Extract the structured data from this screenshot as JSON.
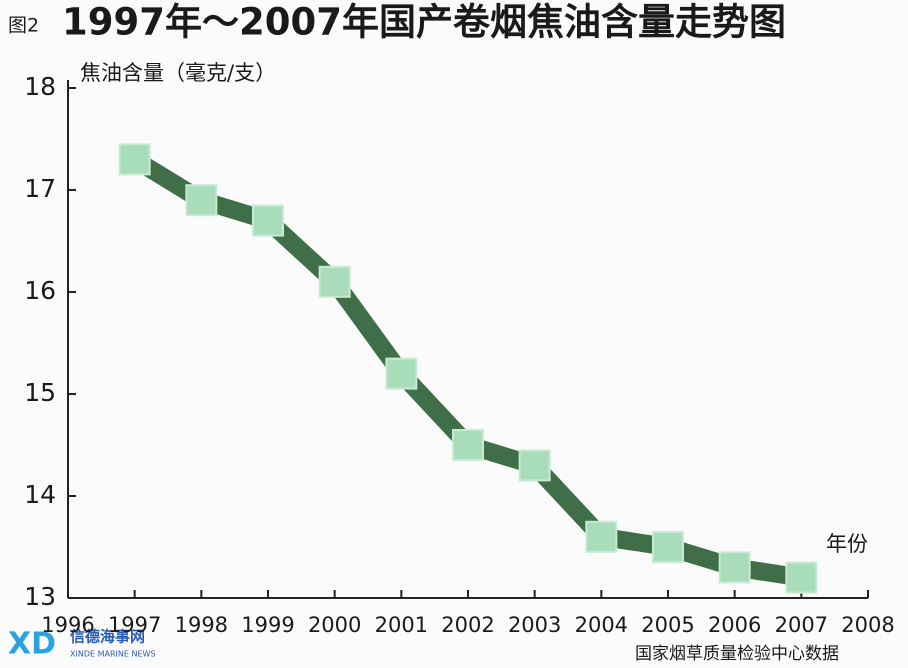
{
  "chart_data": {
    "type": "line",
    "figure_label": "图2",
    "title": "1997年～2007年国产卷烟焦油含量走势图",
    "y_label": "焦油含量（毫克/支）",
    "x_label": "年份",
    "source": "国家烟草质量检验中心数据",
    "watermark": "信德海事网",
    "watermark_subtitle": "XINDE MARINE NEWS",
    "x": [
      1997,
      1998,
      1999,
      2000,
      2001,
      2002,
      2003,
      2004,
      2005,
      2006,
      2007
    ],
    "values": [
      17.3,
      16.9,
      16.7,
      16.1,
      15.2,
      14.5,
      14.3,
      13.6,
      13.5,
      13.3,
      13.2
    ],
    "color": "#3f6e48",
    "marker_color": "#a9dcbb",
    "xlim": [
      1996,
      2008
    ],
    "xticks": [
      1996,
      1997,
      1998,
      1999,
      2000,
      2001,
      2002,
      2003,
      2004,
      2005,
      2006,
      2007,
      2008
    ],
    "ylim": [
      13,
      18
    ],
    "yticks": [
      13,
      14,
      15,
      16,
      17,
      18
    ]
  }
}
